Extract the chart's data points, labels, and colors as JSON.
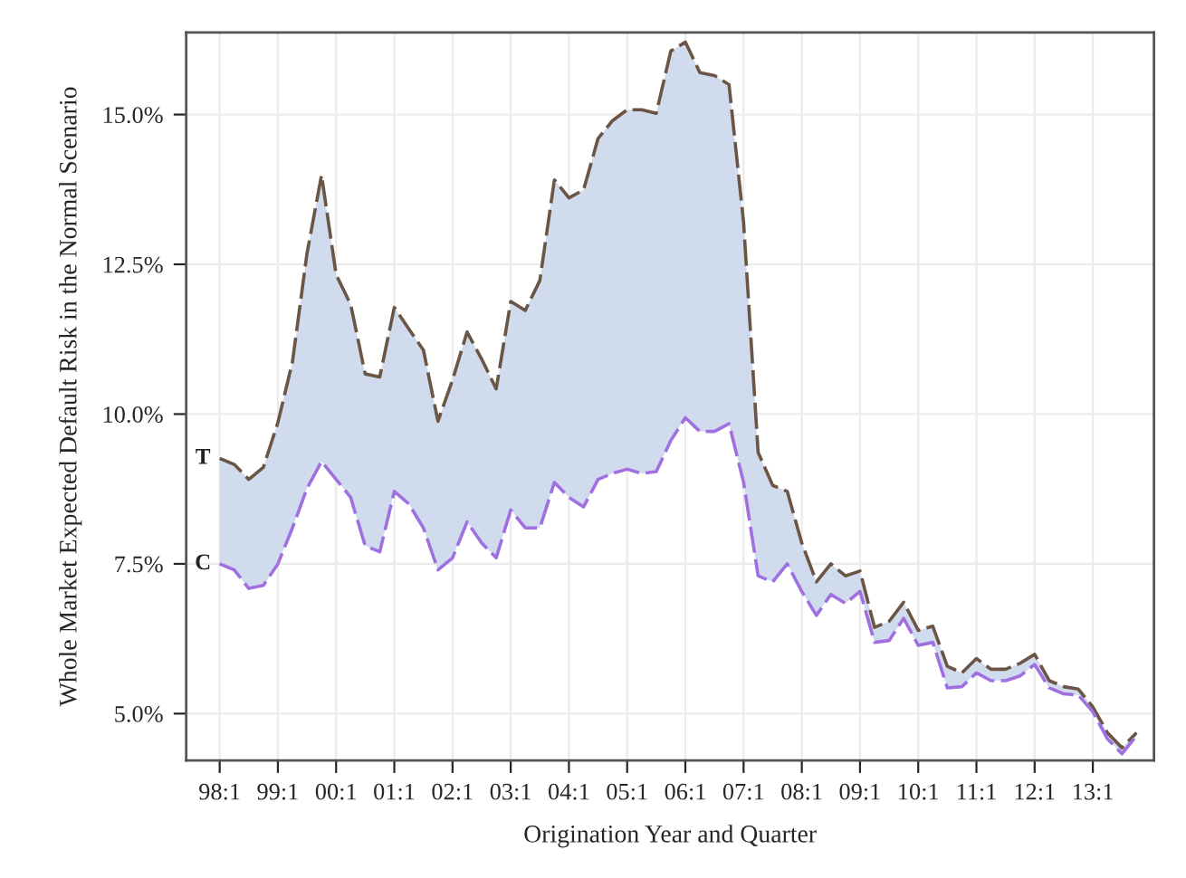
{
  "chart_data": {
    "type": "line",
    "xlabel": "Origination Year and Quarter",
    "ylabel": "Whole Market Expected Default Risk in the Normal Scenario",
    "categories": [
      "98:1",
      null,
      null,
      null,
      "99:1",
      null,
      null,
      null,
      "00:1",
      null,
      null,
      null,
      "01:1",
      null,
      null,
      null,
      "02:1",
      null,
      null,
      null,
      "03:1",
      null,
      null,
      null,
      "04:1",
      null,
      null,
      null,
      "05:1",
      null,
      null,
      null,
      "06:1",
      null,
      null,
      null,
      "07:1",
      null,
      null,
      null,
      "08:1",
      null,
      null,
      null,
      "09:1",
      null,
      null,
      null,
      "10:1",
      null,
      null,
      null,
      "11:1",
      null,
      null,
      null,
      "12:1",
      null,
      null,
      null,
      "13:1",
      null,
      null,
      null
    ],
    "series": [
      {
        "name": "T",
        "color": "#6b5545",
        "line_style": "dashed",
        "values": [
          9.26,
          9.16,
          8.91,
          9.11,
          9.86,
          10.87,
          12.68,
          13.99,
          12.33,
          11.83,
          10.67,
          10.62,
          11.78,
          11.42,
          11.07,
          9.88,
          10.57,
          11.37,
          10.92,
          10.42,
          11.88,
          11.73,
          12.23,
          13.91,
          13.61,
          13.74,
          14.6,
          14.9,
          15.08,
          15.08,
          15.02,
          16.06,
          16.21,
          15.7,
          15.65,
          15.5,
          13.2,
          9.36,
          8.81,
          8.71,
          7.85,
          7.2,
          7.5,
          7.3,
          7.38,
          6.44,
          6.54,
          6.86,
          6.39,
          6.46,
          5.79,
          5.68,
          5.92,
          5.74,
          5.74,
          5.84,
          5.99,
          5.55,
          5.45,
          5.41,
          5.11,
          4.68,
          4.43,
          4.68
        ],
        "lower": [
          7.5,
          7.4,
          7.09,
          7.14,
          7.5,
          8.1,
          8.76,
          9.21,
          8.91,
          8.61,
          7.8,
          7.7,
          8.71,
          8.5,
          8.1,
          7.4,
          7.6,
          8.2,
          7.85,
          7.6,
          8.4,
          8.1,
          8.1,
          8.86,
          8.61,
          8.45,
          8.91,
          9.01,
          9.08,
          9.01,
          9.04,
          9.56,
          9.94,
          9.71,
          9.71,
          9.84,
          8.86,
          7.3,
          7.2,
          7.5,
          7.04,
          6.64,
          6.99,
          6.84,
          7.04,
          6.19,
          6.22,
          6.59,
          6.14,
          6.19,
          5.43,
          5.45,
          5.68,
          5.55,
          5.55,
          5.63,
          5.82,
          5.43,
          5.33,
          5.31,
          5.03,
          4.58,
          4.33,
          4.63
        ],
        "upper": [
          9.26,
          9.16,
          8.91,
          9.11,
          9.86,
          10.87,
          12.68,
          13.99,
          12.33,
          11.83,
          10.67,
          10.62,
          11.78,
          11.42,
          11.07,
          9.88,
          10.57,
          11.37,
          10.92,
          10.42,
          11.88,
          11.73,
          12.23,
          13.91,
          13.61,
          13.74,
          14.6,
          14.9,
          15.08,
          15.08,
          15.02,
          16.06,
          16.21,
          15.7,
          15.65,
          15.5,
          13.2,
          9.36,
          8.81,
          8.71,
          7.85,
          7.2,
          7.5,
          7.3,
          7.38,
          6.44,
          6.54,
          6.86,
          6.39,
          6.46,
          5.79,
          5.68,
          5.92,
          5.74,
          5.74,
          5.84,
          5.99,
          5.55,
          5.45,
          5.41,
          5.11,
          4.68,
          4.43,
          4.68
        ]
      },
      {
        "name": "C",
        "color": "#a070e0",
        "line_style": "dashed",
        "values": [
          7.5,
          7.4,
          7.09,
          7.14,
          7.5,
          8.1,
          8.76,
          9.21,
          8.91,
          8.61,
          7.8,
          7.7,
          8.71,
          8.5,
          8.1,
          7.4,
          7.6,
          8.2,
          7.85,
          7.6,
          8.4,
          8.1,
          8.1,
          8.86,
          8.61,
          8.45,
          8.91,
          9.01,
          9.08,
          9.01,
          9.04,
          9.56,
          9.94,
          9.71,
          9.71,
          9.84,
          8.86,
          7.3,
          7.2,
          7.5,
          7.04,
          6.64,
          6.99,
          6.84,
          7.04,
          6.19,
          6.22,
          6.59,
          6.14,
          6.19,
          5.43,
          5.45,
          5.68,
          5.55,
          5.55,
          5.63,
          5.82,
          5.43,
          5.33,
          5.31,
          5.03,
          4.58,
          4.33,
          4.63
        ]
      }
    ],
    "ylim": [
      4.22,
      16.37
    ],
    "yticks": [
      {
        "value": 5,
        "label": "5.0%"
      },
      {
        "value": 7.5,
        "label": "7.5%"
      },
      {
        "value": 10,
        "label": "10.0%"
      },
      {
        "value": 12.5,
        "label": "12.5%"
      },
      {
        "value": 15,
        "label": "15.0%"
      }
    ],
    "grid": true,
    "legend": false
  }
}
